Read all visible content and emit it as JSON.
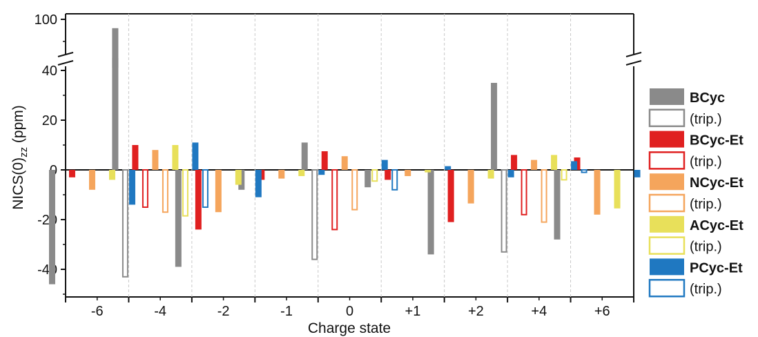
{
  "chart_data": {
    "type": "bar",
    "xlabel": "Charge state",
    "ylabel_main": "NICS(0)",
    "ylabel_sub": "zz",
    "ylabel_unit": " (ppm)",
    "categories": [
      "-6",
      "-4",
      "-2",
      "-1",
      "0",
      "+1",
      "+2",
      "+4",
      "+6"
    ],
    "yticks_lower": [
      -40,
      -20,
      0,
      20,
      40
    ],
    "ytick_labels_lower": [
      "-40",
      "-20",
      "0",
      "20",
      "40"
    ],
    "yticks_upper": [
      100
    ],
    "ytick_labels_upper": [
      "100"
    ],
    "ylim_lower": [
      -50,
      45
    ],
    "ylim_upper": [
      80,
      100
    ],
    "axis_break": true,
    "grid": "vertical dashed separators between categories",
    "legend_position": "right",
    "series": [
      {
        "name": "BCyc",
        "style": "filled",
        "color": "#8a8a8a",
        "values": [
          -46,
          96,
          -39,
          -8,
          11,
          -7,
          -34,
          35,
          -28
        ]
      },
      {
        "name": "(trip.)",
        "style": "outline",
        "color": "#8a8a8a",
        "values": [
          null,
          -43,
          null,
          null,
          -36,
          null,
          null,
          -33,
          null
        ]
      },
      {
        "name": "BCyc-Et",
        "style": "filled",
        "color": "#e02020",
        "values": [
          -3,
          10,
          -24,
          -4,
          7.5,
          -4,
          -21,
          6,
          5
        ]
      },
      {
        "name": "(trip.)",
        "style": "outline",
        "color": "#e02020",
        "values": [
          null,
          -15,
          null,
          null,
          -24,
          null,
          null,
          -18,
          null
        ]
      },
      {
        "name": "NCyc-Et",
        "style": "filled",
        "color": "#f5a55c",
        "values": [
          -8,
          8,
          -17,
          -3.5,
          5.5,
          -2.5,
          -13.5,
          4,
          -18
        ]
      },
      {
        "name": "(trip.)",
        "style": "outline",
        "color": "#f5a55c",
        "values": [
          null,
          -17,
          null,
          null,
          -16,
          null,
          null,
          -21,
          null
        ]
      },
      {
        "name": "ACyc-Et",
        "style": "filled",
        "color": "#e8e05a",
        "values": [
          -4,
          10,
          -6,
          -2.5,
          null,
          -1,
          -3.5,
          6,
          -15.5
        ]
      },
      {
        "name": "(trip.)",
        "style": "outline",
        "color": "#e8e05a",
        "values": [
          null,
          -18.5,
          null,
          null,
          -4.5,
          null,
          null,
          -4,
          null
        ]
      },
      {
        "name": "PCyc-Et",
        "style": "filled",
        "color": "#1f78c1",
        "values": [
          -14,
          11,
          -11,
          -2,
          4,
          1.5,
          -3,
          3.5,
          -3
        ]
      },
      {
        "name": "(trip.)",
        "style": "outline",
        "color": "#1f78c1",
        "values": [
          null,
          -15,
          null,
          null,
          -8,
          null,
          null,
          -1,
          null
        ]
      }
    ]
  }
}
